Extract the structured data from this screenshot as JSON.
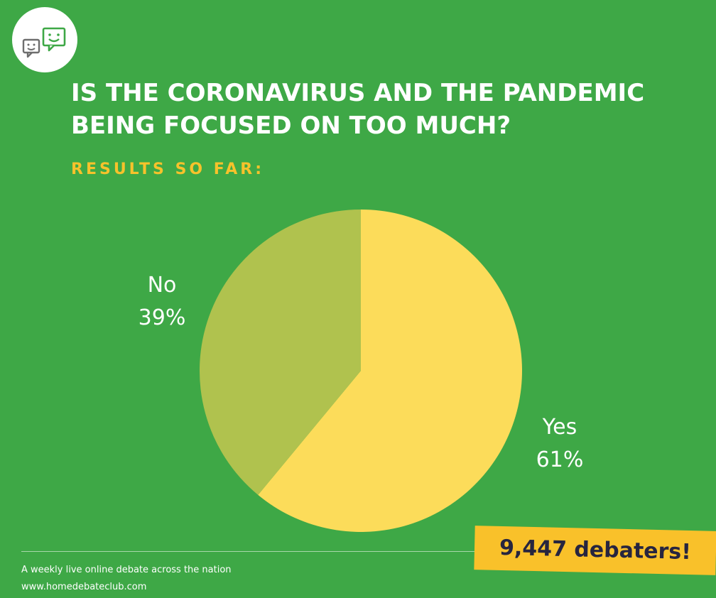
{
  "header": {
    "logo_icon": "chat-bubbles-smiley-icon",
    "title_line_1": "IS THE CORONAVIRUS AND THE PANDEMIC",
    "title_line_2": "BEING FOCUSED ON TOO MUCH?",
    "subtitle": "RESULTS SO FAR:"
  },
  "colors": {
    "background": "#3ea846",
    "yes_slice": "#fcdc5a",
    "no_slice": "#b0c24e",
    "subtitle": "#f7c22b",
    "badge": "#f9c12a",
    "badge_text": "#27253f"
  },
  "chart_data": {
    "type": "pie",
    "title": "IS THE CORONAVIRUS AND THE PANDEMIC BEING FOCUSED ON TOO MUCH?",
    "subtitle": "RESULTS SO FAR:",
    "categories": [
      "Yes",
      "No"
    ],
    "values": [
      61,
      39
    ],
    "value_labels": [
      "61%",
      "39%"
    ],
    "colors": [
      "#fcdc5a",
      "#b0c24e"
    ],
    "legend": "none"
  },
  "badge": {
    "text": "9,447 debaters!"
  },
  "footer": {
    "tagline": "A weekly live online debate across the nation",
    "url": "www.homedebateclub.com"
  }
}
